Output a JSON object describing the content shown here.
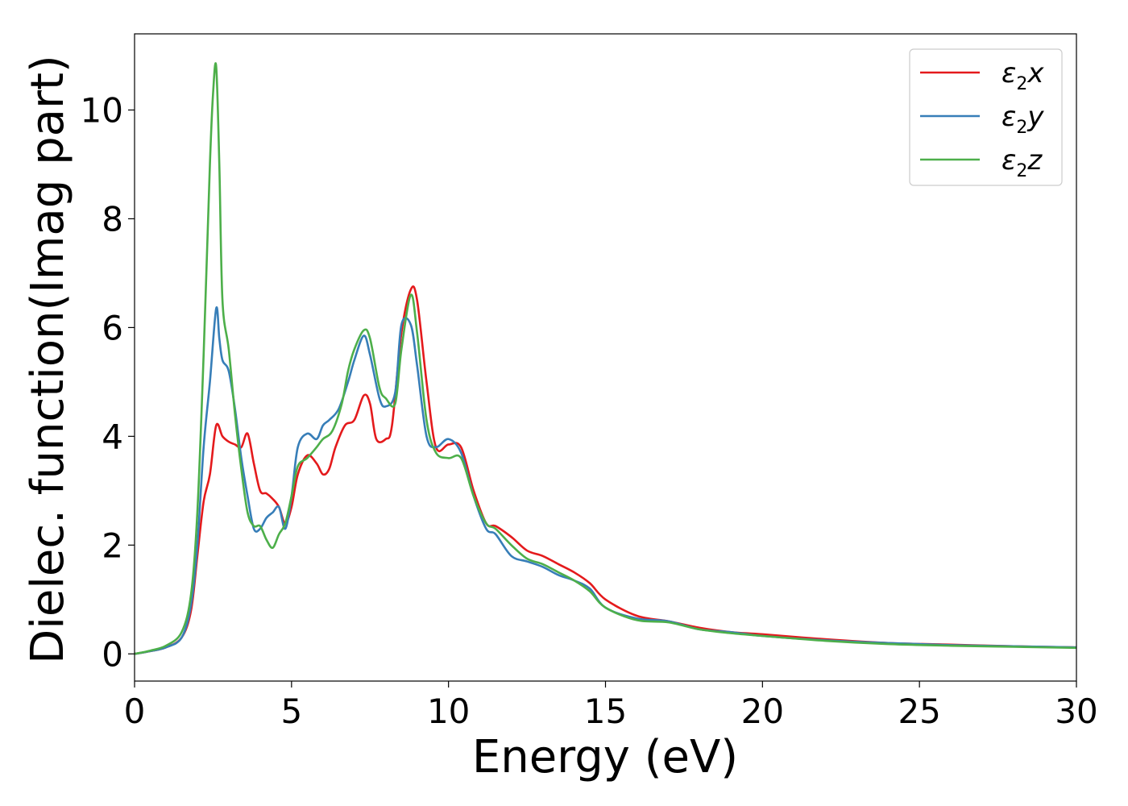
{
  "chart_data": {
    "type": "line",
    "xlabel": "Energy (eV)",
    "ylabel": "Dielec. function(Imag part)",
    "xlim": [
      0,
      30
    ],
    "ylim": [
      -0.5,
      11.4
    ],
    "xticks": [
      "0",
      "5",
      "10",
      "15",
      "20",
      "25",
      "30"
    ],
    "yticks": [
      "0",
      "2",
      "4",
      "6",
      "8",
      "10"
    ],
    "grid": false,
    "legend_position": "top-right",
    "series": [
      {
        "name": "ε2x",
        "legend_base": "ε",
        "legend_sub": "2",
        "legend_var": "x",
        "color": "#e41a1c",
        "x": [
          0,
          0.5,
          1.0,
          1.5,
          1.8,
          2.0,
          2.2,
          2.4,
          2.6,
          2.8,
          3.0,
          3.2,
          3.4,
          3.6,
          3.8,
          4.0,
          4.2,
          4.4,
          4.6,
          4.8,
          5.0,
          5.2,
          5.5,
          5.8,
          6.0,
          6.2,
          6.4,
          6.7,
          7.0,
          7.3,
          7.5,
          7.7,
          8.0,
          8.2,
          8.5,
          8.8,
          9.0,
          9.3,
          9.6,
          10.0,
          10.4,
          10.8,
          11.2,
          11.5,
          12.0,
          12.5,
          13.0,
          13.5,
          14.0,
          14.5,
          15.0,
          16.0,
          17.0,
          18.0,
          19.0,
          20.0,
          22.0,
          24.0,
          26.0,
          28.0,
          30.0
        ],
        "y": [
          0.0,
          0.05,
          0.12,
          0.3,
          0.8,
          1.8,
          2.8,
          3.3,
          4.2,
          4.0,
          3.9,
          3.85,
          3.8,
          4.05,
          3.5,
          3.0,
          2.95,
          2.85,
          2.7,
          2.4,
          2.7,
          3.3,
          3.65,
          3.5,
          3.3,
          3.4,
          3.8,
          4.2,
          4.3,
          4.75,
          4.6,
          3.95,
          3.95,
          4.2,
          5.9,
          6.7,
          6.5,
          5.0,
          3.8,
          3.85,
          3.8,
          3.0,
          2.4,
          2.35,
          2.15,
          1.9,
          1.8,
          1.65,
          1.5,
          1.3,
          1.0,
          0.7,
          0.6,
          0.48,
          0.4,
          0.36,
          0.27,
          0.2,
          0.17,
          0.14,
          0.12
        ]
      },
      {
        "name": "ε2y",
        "legend_base": "ε",
        "legend_sub": "2",
        "legend_var": "y",
        "color": "#377eb8",
        "x": [
          0,
          0.5,
          1.0,
          1.5,
          1.8,
          2.0,
          2.2,
          2.4,
          2.6,
          2.7,
          2.8,
          3.0,
          3.2,
          3.4,
          3.6,
          3.8,
          4.0,
          4.2,
          4.4,
          4.6,
          4.8,
          5.0,
          5.2,
          5.5,
          5.8,
          6.0,
          6.2,
          6.5,
          6.8,
          7.0,
          7.3,
          7.5,
          7.8,
          8.0,
          8.3,
          8.5,
          8.8,
          9.0,
          9.3,
          9.6,
          10.0,
          10.4,
          10.8,
          11.2,
          11.5,
          12.0,
          12.5,
          13.0,
          13.5,
          14.0,
          14.5,
          15.0,
          16.0,
          17.0,
          18.0,
          19.0,
          20.0,
          22.0,
          24.0,
          26.0,
          28.0,
          30.0
        ],
        "y": [
          0.0,
          0.05,
          0.12,
          0.3,
          0.9,
          2.0,
          3.8,
          5.0,
          6.35,
          5.8,
          5.4,
          5.2,
          4.5,
          3.6,
          2.9,
          2.3,
          2.3,
          2.5,
          2.6,
          2.7,
          2.3,
          2.9,
          3.8,
          4.05,
          3.95,
          4.2,
          4.3,
          4.5,
          5.0,
          5.4,
          5.85,
          5.5,
          4.7,
          4.55,
          4.8,
          6.05,
          6.05,
          5.3,
          4.0,
          3.8,
          3.95,
          3.7,
          2.9,
          2.3,
          2.2,
          1.8,
          1.7,
          1.6,
          1.45,
          1.35,
          1.2,
          0.85,
          0.65,
          0.6,
          0.45,
          0.4,
          0.33,
          0.25,
          0.2,
          0.16,
          0.14,
          0.12
        ]
      },
      {
        "name": "ε2z",
        "legend_base": "ε",
        "legend_sub": "2",
        "legend_var": "z",
        "color": "#4daf4a",
        "x": [
          0,
          0.5,
          1.0,
          1.5,
          1.8,
          2.0,
          2.2,
          2.4,
          2.5,
          2.6,
          2.7,
          2.8,
          3.0,
          3.2,
          3.4,
          3.6,
          3.8,
          4.0,
          4.2,
          4.4,
          4.6,
          4.8,
          5.0,
          5.2,
          5.5,
          5.8,
          6.0,
          6.3,
          6.6,
          6.8,
          7.0,
          7.3,
          7.5,
          7.8,
          8.0,
          8.3,
          8.5,
          8.8,
          9.0,
          9.3,
          9.6,
          10.0,
          10.4,
          10.8,
          11.2,
          11.5,
          12.0,
          12.5,
          13.0,
          13.5,
          14.0,
          14.5,
          15.0,
          16.0,
          17.0,
          18.0,
          19.0,
          20.0,
          22.0,
          24.0,
          26.0,
          28.0,
          30.0
        ],
        "y": [
          0.0,
          0.06,
          0.15,
          0.4,
          1.1,
          2.6,
          5.5,
          9.0,
          10.3,
          10.8,
          9.0,
          6.5,
          5.6,
          4.4,
          3.4,
          2.6,
          2.35,
          2.35,
          2.1,
          1.95,
          2.2,
          2.4,
          2.9,
          3.45,
          3.6,
          3.8,
          3.95,
          4.1,
          4.6,
          5.2,
          5.6,
          5.95,
          5.8,
          4.9,
          4.7,
          4.6,
          5.6,
          6.6,
          5.9,
          4.3,
          3.7,
          3.6,
          3.6,
          2.9,
          2.4,
          2.3,
          2.0,
          1.75,
          1.65,
          1.5,
          1.35,
          1.15,
          0.85,
          0.62,
          0.58,
          0.45,
          0.38,
          0.33,
          0.24,
          0.18,
          0.15,
          0.13,
          0.11
        ]
      }
    ]
  }
}
